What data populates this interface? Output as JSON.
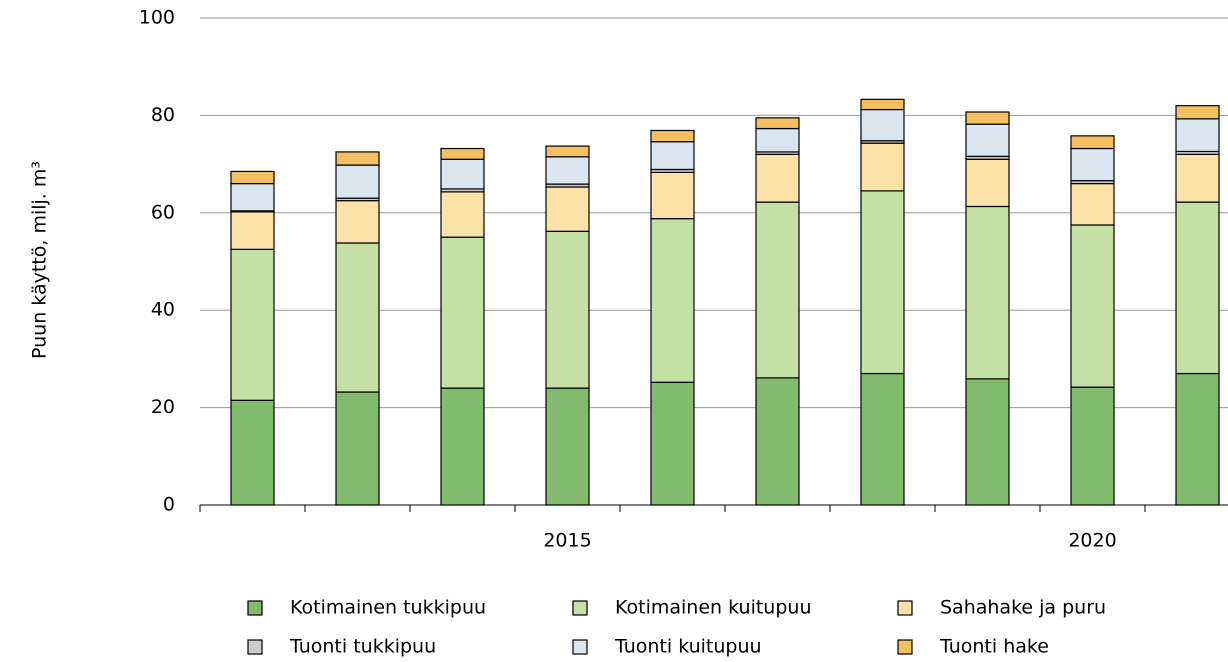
{
  "chart_data": {
    "type": "stacked_bar",
    "y_label": "Puun käyttö, milj. m³",
    "categories": [
      null,
      null,
      null,
      "2015",
      null,
      null,
      null,
      null,
      "2020",
      null
    ],
    "series": [
      {
        "name": "Kotimainen tukkipuu",
        "color": "#82bb6e",
        "values": [
          21.5,
          23.2,
          24,
          24,
          25.2,
          26.1,
          27,
          25.9,
          24.2,
          27
        ]
      },
      {
        "name": "Kotimainen kuitupuu",
        "color": "#c4e0a4",
        "values": [
          31,
          30.6,
          31,
          32.2,
          33.6,
          36.1,
          37.5,
          35.4,
          33.3,
          35.2
        ]
      },
      {
        "name": "Sahahake ja puru",
        "color": "#fce2a6",
        "values": [
          7.7,
          8.7,
          9.3,
          9.1,
          9.5,
          9.8,
          9.8,
          9.7,
          8.5,
          9.8
        ]
      },
      {
        "name": "Tuonti tukkipuu",
        "color": "#cccccc",
        "values": [
          0.2,
          0.5,
          0.6,
          0.6,
          0.6,
          0.5,
          0.5,
          0.6,
          0.6,
          0.6
        ]
      },
      {
        "name": "Tuonti kuitupuu",
        "color": "#d9e6ef",
        "values": [
          5.6,
          6.8,
          6.1,
          5.6,
          5.7,
          4.8,
          6.4,
          6.6,
          6.6,
          6.7
        ]
      },
      {
        "name": "Tuonti hake",
        "color": "#f5c061",
        "values": [
          2.5,
          2.7,
          2.2,
          2.2,
          2.3,
          2.2,
          2.1,
          2.5,
          2.6,
          2.7
        ]
      }
    ],
    "ylim": [
      0,
      100
    ],
    "yticks": [
      0,
      20,
      40,
      60,
      80,
      100
    ],
    "grid": true
  }
}
